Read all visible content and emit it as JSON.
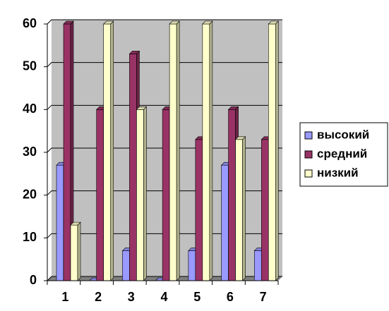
{
  "chart_data": {
    "type": "bar3d",
    "categories": [
      "1",
      "2",
      "3",
      "4",
      "5",
      "6",
      "7"
    ],
    "series": [
      {
        "name": "высокий",
        "color": "#9999ff",
        "values": [
          27,
          0,
          7,
          0,
          7,
          27,
          7
        ]
      },
      {
        "name": "средний",
        "color": "#993366",
        "values": [
          60,
          40,
          53,
          40,
          33,
          40,
          33
        ]
      },
      {
        "name": "низкий",
        "color": "#ffffcc",
        "values": [
          13,
          60,
          40,
          60,
          60,
          33,
          60
        ]
      }
    ],
    "ylim": [
      0,
      60
    ],
    "yticks": [
      0,
      10,
      20,
      30,
      40,
      50,
      60
    ],
    "grid": true,
    "legend": "right"
  }
}
